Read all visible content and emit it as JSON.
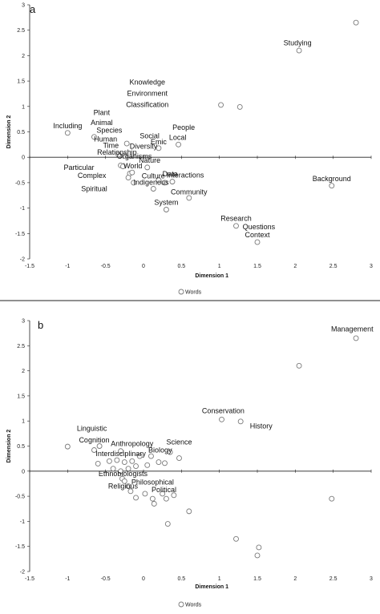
{
  "chart_data": [
    {
      "type": "scatter",
      "panel_label": "a",
      "xlabel": "Dimension 1",
      "ylabel": "Dimension 2",
      "xlim": [
        -1.5,
        3
      ],
      "ylim": [
        -2,
        3
      ],
      "xticks": [
        "-1.5",
        "-1",
        "-0.5",
        "0",
        "0.5",
        "1",
        "1.5",
        "2",
        "2.5",
        "3"
      ],
      "yticks": [
        "-2",
        "-1.5",
        "-1",
        "-0.5",
        "0",
        "0.5",
        "1",
        "1.5",
        "2",
        "2.5",
        "3"
      ],
      "legend": "Words",
      "points": [
        {
          "x": 2.8,
          "y": 2.65
        },
        {
          "x": 2.05,
          "y": 2.1
        },
        {
          "x": 1.02,
          "y": 1.03
        },
        {
          "x": 1.27,
          "y": 0.99
        },
        {
          "x": -1.0,
          "y": 0.48
        },
        {
          "x": -0.65,
          "y": 0.4
        },
        {
          "x": -0.22,
          "y": 0.27
        },
        {
          "x": 0.2,
          "y": 0.18
        },
        {
          "x": 0.46,
          "y": 0.25
        },
        {
          "x": -0.33,
          "y": 0.05
        },
        {
          "x": -0.25,
          "y": 0.03
        },
        {
          "x": -0.3,
          "y": -0.16
        },
        {
          "x": -0.27,
          "y": -0.18
        },
        {
          "x": -0.18,
          "y": -0.32
        },
        {
          "x": -0.15,
          "y": -0.3
        },
        {
          "x": -0.2,
          "y": -0.4
        },
        {
          "x": -0.13,
          "y": -0.5
        },
        {
          "x": 0.05,
          "y": -0.2
        },
        {
          "x": 0.13,
          "y": -0.62
        },
        {
          "x": 0.2,
          "y": -0.45
        },
        {
          "x": 0.28,
          "y": -0.5
        },
        {
          "x": 0.38,
          "y": -0.48
        },
        {
          "x": 0.6,
          "y": -0.8
        },
        {
          "x": 0.3,
          "y": -1.03
        },
        {
          "x": 2.48,
          "y": -0.56
        },
        {
          "x": 1.22,
          "y": -1.35
        },
        {
          "x": 1.5,
          "y": -1.67
        }
      ],
      "labels": [
        {
          "text": "Studying",
          "x": 2.03,
          "y": 2.25
        },
        {
          "text": "Knowledge",
          "x": 0.05,
          "y": 1.48
        },
        {
          "text": "Environment",
          "x": 0.05,
          "y": 1.26
        },
        {
          "text": "Classification",
          "x": 0.05,
          "y": 1.04
        },
        {
          "text": "Plant",
          "x": -0.55,
          "y": 0.88
        },
        {
          "text": "Animal",
          "x": -0.55,
          "y": 0.68
        },
        {
          "text": "Including",
          "x": -1.0,
          "y": 0.62
        },
        {
          "text": "Species",
          "x": -0.45,
          "y": 0.53
        },
        {
          "text": "Human",
          "x": -0.5,
          "y": 0.36
        },
        {
          "text": "Social",
          "x": 0.08,
          "y": 0.42
        },
        {
          "text": "People",
          "x": 0.53,
          "y": 0.59
        },
        {
          "text": "Local",
          "x": 0.45,
          "y": 0.39
        },
        {
          "text": "Emic",
          "x": 0.2,
          "y": 0.3
        },
        {
          "text": "Diversity",
          "x": 0.0,
          "y": 0.22
        },
        {
          "text": "Time",
          "x": -0.43,
          "y": 0.23
        },
        {
          "text": "Relationship",
          "x": -0.35,
          "y": 0.1
        },
        {
          "text": "Organisms",
          "x": -0.12,
          "y": 0.02
        },
        {
          "text": "Nature",
          "x": 0.08,
          "y": -0.06
        },
        {
          "text": "Particular",
          "x": -0.85,
          "y": -0.2
        },
        {
          "text": "World",
          "x": -0.14,
          "y": -0.17
        },
        {
          "text": "Complex",
          "x": -0.68,
          "y": -0.36
        },
        {
          "text": "Data",
          "x": 0.35,
          "y": -0.33
        },
        {
          "text": "Interactions",
          "x": 0.55,
          "y": -0.35
        },
        {
          "text": "Culture",
          "x": 0.13,
          "y": -0.37
        },
        {
          "text": "Indigenous",
          "x": 0.1,
          "y": -0.49
        },
        {
          "text": "Spiritual",
          "x": -0.65,
          "y": -0.62
        },
        {
          "text": "Community",
          "x": 0.6,
          "y": -0.68
        },
        {
          "text": "System",
          "x": 0.3,
          "y": -0.89
        },
        {
          "text": "Background",
          "x": 2.48,
          "y": -0.42
        },
        {
          "text": "Research",
          "x": 1.22,
          "y": -1.2
        },
        {
          "text": "Questions",
          "x": 1.52,
          "y": -1.37
        },
        {
          "text": "Context",
          "x": 1.5,
          "y": -1.53
        }
      ]
    },
    {
      "type": "scatter",
      "panel_label": "b",
      "xlabel": "Dimension 1",
      "ylabel": "Dimension 2",
      "xlim": [
        -1.5,
        3
      ],
      "ylim": [
        -2,
        3
      ],
      "xticks": [
        "-1.5",
        "-1",
        "-0.5",
        "0",
        "0.5",
        "1",
        "1.5",
        "2",
        "2.5",
        "3"
      ],
      "yticks": [
        "-2",
        "-1.5",
        "-1",
        "-0.5",
        "0",
        "0.5",
        "1",
        "1.5",
        "2",
        "2.5",
        "3"
      ],
      "legend": "Words",
      "points": [
        {
          "x": 2.8,
          "y": 2.65
        },
        {
          "x": 2.05,
          "y": 2.1
        },
        {
          "x": 1.03,
          "y": 1.03
        },
        {
          "x": 1.28,
          "y": 0.99
        },
        {
          "x": -1.0,
          "y": 0.49
        },
        {
          "x": -0.65,
          "y": 0.42
        },
        {
          "x": -0.58,
          "y": 0.5
        },
        {
          "x": -0.3,
          "y": 0.4
        },
        {
          "x": -0.6,
          "y": 0.15
        },
        {
          "x": -0.45,
          "y": 0.2
        },
        {
          "x": -0.35,
          "y": 0.22
        },
        {
          "x": -0.25,
          "y": 0.18
        },
        {
          "x": -0.15,
          "y": 0.2
        },
        {
          "x": -0.05,
          "y": 0.3
        },
        {
          "x": 0.05,
          "y": 0.12
        },
        {
          "x": -0.4,
          "y": 0.05
        },
        {
          "x": -0.3,
          "y": 0.0
        },
        {
          "x": -0.2,
          "y": 0.05
        },
        {
          "x": -0.1,
          "y": 0.1
        },
        {
          "x": 0.1,
          "y": 0.3
        },
        {
          "x": 0.2,
          "y": 0.18
        },
        {
          "x": 0.28,
          "y": 0.16
        },
        {
          "x": 0.47,
          "y": 0.26
        },
        {
          "x": 0.35,
          "y": 0.38
        },
        {
          "x": -0.28,
          "y": -0.15
        },
        {
          "x": -0.25,
          "y": -0.2
        },
        {
          "x": -0.2,
          "y": -0.3
        },
        {
          "x": -0.17,
          "y": -0.4
        },
        {
          "x": -0.1,
          "y": -0.53
        },
        {
          "x": 0.02,
          "y": -0.45
        },
        {
          "x": 0.12,
          "y": -0.55
        },
        {
          "x": 0.14,
          "y": -0.65
        },
        {
          "x": 0.25,
          "y": -0.45
        },
        {
          "x": 0.3,
          "y": -0.55
        },
        {
          "x": 0.4,
          "y": -0.48
        },
        {
          "x": 0.6,
          "y": -0.8
        },
        {
          "x": 0.32,
          "y": -1.05
        },
        {
          "x": 2.48,
          "y": -0.55
        },
        {
          "x": 1.22,
          "y": -1.35
        },
        {
          "x": 1.52,
          "y": -1.52
        },
        {
          "x": 1.5,
          "y": -1.68
        }
      ],
      "labels": [
        {
          "text": "Management",
          "x": 2.75,
          "y": 2.83
        },
        {
          "text": "Conservation",
          "x": 1.05,
          "y": 1.2
        },
        {
          "text": "History",
          "x": 1.55,
          "y": 0.9
        },
        {
          "text": "Linguistic",
          "x": -0.68,
          "y": 0.85
        },
        {
          "text": "Cognition",
          "x": -0.65,
          "y": 0.62
        },
        {
          "text": "Anthropology",
          "x": -0.15,
          "y": 0.55
        },
        {
          "text": "Science",
          "x": 0.47,
          "y": 0.58
        },
        {
          "text": "Biology",
          "x": 0.22,
          "y": 0.42
        },
        {
          "text": "Interdisciplinary",
          "x": -0.3,
          "y": 0.35
        },
        {
          "text": "Ethnobiologists",
          "x": -0.27,
          "y": -0.05
        },
        {
          "text": "Philosophical",
          "x": 0.12,
          "y": -0.22
        },
        {
          "text": "Religious",
          "x": -0.27,
          "y": -0.3
        },
        {
          "text": "Political",
          "x": 0.27,
          "y": -0.37
        }
      ]
    }
  ]
}
